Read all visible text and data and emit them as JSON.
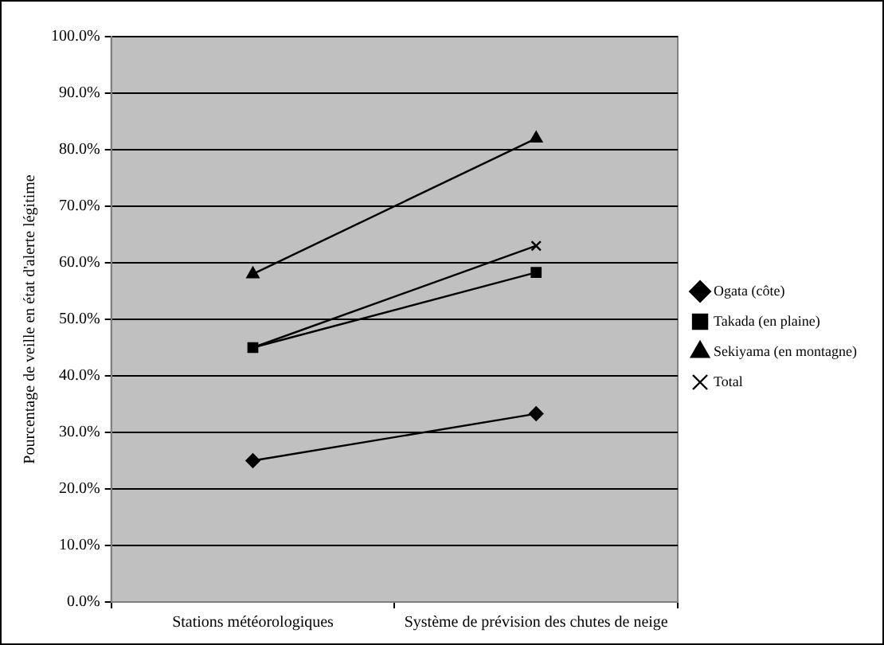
{
  "chart_data": {
    "type": "line",
    "ylabel": "Pourcentage de veille en état d'alerte légitime",
    "categories": [
      "Stations météorologiques",
      "Système de prévision des chutes de neige"
    ],
    "series": [
      {
        "name": "Ogata (côte)",
        "color": "#000000",
        "marker": "diamond",
        "values": [
          25,
          33.3
        ]
      },
      {
        "name": "Takada (en plaine)",
        "color": "#000000",
        "marker": "square",
        "values": [
          45,
          58.3
        ]
      },
      {
        "name": "Sekiyama (en montagne)",
        "color": "#000000",
        "marker": "triangle",
        "values": [
          58,
          82
        ]
      },
      {
        "name": "Total",
        "color": "#000000",
        "marker": "cross",
        "values": [
          45,
          63
        ]
      }
    ],
    "ylim": [
      0,
      100
    ],
    "yticks": [
      {
        "value": 0,
        "label": "0.0%"
      },
      {
        "value": 10,
        "label": "10.0%"
      },
      {
        "value": 20,
        "label": "20.0%"
      },
      {
        "value": 30,
        "label": "30.0%"
      },
      {
        "value": 40,
        "label": "40.0%"
      },
      {
        "value": 50,
        "label": "50.0%"
      },
      {
        "value": 60,
        "label": "60.0%"
      },
      {
        "value": 70,
        "label": "70.0%"
      },
      {
        "value": 80,
        "label": "80.0%"
      },
      {
        "value": 90,
        "label": "90.0%"
      },
      {
        "value": 100,
        "label": "100.0%"
      }
    ],
    "grid": "y",
    "legend": "right",
    "line_style": "solid"
  }
}
